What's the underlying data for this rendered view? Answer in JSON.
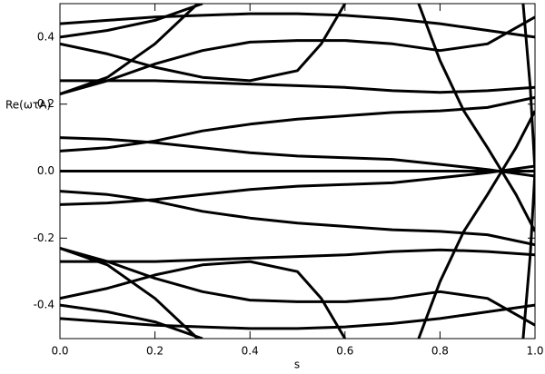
{
  "chart_data": {
    "type": "line",
    "xlabel": "s",
    "ylabel": "Re(ωτA)",
    "color": "#000000",
    "xlim": [
      0,
      1
    ],
    "ylim": [
      -0.5,
      0.5
    ],
    "xticks": [
      {
        "value": 0,
        "label": "0.0"
      },
      0.2,
      0.4,
      0.6,
      0.8,
      {
        "value": 1,
        "label": "1.0"
      }
    ],
    "yticks": [
      -0.4,
      -0.2,
      {
        "value": 0,
        "label": "0.0"
      },
      0.2,
      0.4
    ],
    "series": [
      {
        "x": [
          0,
          0.1,
          0.2,
          0.3,
          0.4,
          0.5,
          0.6,
          0.7,
          0.8,
          0.9,
          1
        ],
        "values": [
          0,
          0,
          0,
          0,
          0,
          0,
          0,
          0,
          0,
          0,
          0
        ]
      },
      {
        "x": [
          0,
          0.1,
          0.2,
          0.3,
          0.4,
          0.5,
          0.6,
          0.7,
          0.8,
          0.9,
          1
        ],
        "values": [
          0.44,
          0.45,
          0.46,
          0.465,
          0.47,
          0.47,
          0.465,
          0.455,
          0.44,
          0.42,
          0.4
        ]
      },
      {
        "x": [
          0,
          0.1,
          0.2,
          0.3
        ],
        "values": [
          0.4,
          0.42,
          0.45,
          0.5
        ]
      },
      {
        "x": [
          0,
          0.1,
          0.2,
          0.3,
          0.4,
          0.5,
          0.55,
          0.6
        ],
        "values": [
          0.38,
          0.35,
          0.31,
          0.28,
          0.27,
          0.3,
          0.38,
          0.5
        ]
      },
      {
        "x": [
          0,
          0.1,
          0.2,
          0.3,
          0.4,
          0.5,
          0.6,
          0.7,
          0.8,
          0.9,
          1
        ],
        "values": [
          0.23,
          0.27,
          0.32,
          0.36,
          0.385,
          0.39,
          0.39,
          0.38,
          0.36,
          0.38,
          0.46
        ]
      },
      {
        "x": [
          0,
          0.1,
          0.2,
          0.29
        ],
        "values": [
          0.23,
          0.28,
          0.38,
          0.5
        ]
      },
      {
        "x": [
          0,
          0.1,
          0.2,
          0.3,
          0.4,
          0.5,
          0.6,
          0.7,
          0.8,
          0.9,
          1
        ],
        "values": [
          0.27,
          0.27,
          0.27,
          0.265,
          0.26,
          0.255,
          0.25,
          0.24,
          0.235,
          0.24,
          0.25
        ]
      },
      {
        "x": [
          0,
          0.1,
          0.2,
          0.3,
          0.4,
          0.5,
          0.6,
          0.7,
          0.8,
          0.9,
          1
        ],
        "values": [
          0.1,
          0.095,
          0.085,
          0.07,
          0.055,
          0.045,
          0.04,
          0.035,
          0.02,
          0.005,
          -0.015
        ]
      },
      {
        "x": [
          0,
          0.1,
          0.2,
          0.3,
          0.4,
          0.5,
          0.6,
          0.7,
          0.8,
          0.9,
          1
        ],
        "values": [
          0.06,
          0.07,
          0.09,
          0.12,
          0.14,
          0.155,
          0.165,
          0.175,
          0.18,
          0.19,
          0.22
        ]
      },
      {
        "x": [
          0,
          0.1,
          0.2,
          0.3,
          0.4,
          0.5,
          0.6,
          0.7,
          0.8,
          0.9,
          1
        ],
        "values": [
          -0.44,
          -0.45,
          -0.46,
          -0.465,
          -0.47,
          -0.47,
          -0.465,
          -0.455,
          -0.44,
          -0.42,
          -0.4
        ]
      },
      {
        "x": [
          0,
          0.1,
          0.2,
          0.3
        ],
        "values": [
          -0.4,
          -0.42,
          -0.45,
          -0.5
        ]
      },
      {
        "x": [
          0,
          0.1,
          0.2,
          0.3,
          0.4,
          0.5,
          0.55,
          0.6
        ],
        "values": [
          -0.38,
          -0.35,
          -0.31,
          -0.28,
          -0.27,
          -0.3,
          -0.38,
          -0.5
        ]
      },
      {
        "x": [
          0,
          0.1,
          0.2,
          0.3,
          0.4,
          0.5,
          0.6,
          0.7,
          0.8,
          0.9,
          1
        ],
        "values": [
          -0.23,
          -0.27,
          -0.32,
          -0.36,
          -0.385,
          -0.39,
          -0.39,
          -0.38,
          -0.36,
          -0.38,
          -0.46
        ]
      },
      {
        "x": [
          0,
          0.1,
          0.2,
          0.29
        ],
        "values": [
          -0.23,
          -0.28,
          -0.38,
          -0.5
        ]
      },
      {
        "x": [
          0,
          0.1,
          0.2,
          0.3,
          0.4,
          0.5,
          0.6,
          0.7,
          0.8,
          0.9,
          1
        ],
        "values": [
          -0.27,
          -0.27,
          -0.27,
          -0.265,
          -0.26,
          -0.255,
          -0.25,
          -0.24,
          -0.235,
          -0.24,
          -0.25
        ]
      },
      {
        "x": [
          0,
          0.1,
          0.2,
          0.3,
          0.4,
          0.5,
          0.6,
          0.7,
          0.8,
          0.9,
          1
        ],
        "values": [
          -0.1,
          -0.095,
          -0.085,
          -0.07,
          -0.055,
          -0.045,
          -0.04,
          -0.035,
          -0.02,
          -0.005,
          0.015
        ]
      },
      {
        "x": [
          0,
          0.1,
          0.2,
          0.3,
          0.4,
          0.5,
          0.6,
          0.7,
          0.8,
          0.9,
          1
        ],
        "values": [
          -0.06,
          -0.07,
          -0.09,
          -0.12,
          -0.14,
          -0.155,
          -0.165,
          -0.175,
          -0.18,
          -0.19,
          -0.22
        ]
      },
      {
        "x": [
          0.755,
          0.8,
          0.85,
          0.9,
          0.93,
          0.96,
          1
        ],
        "values": [
          0.5,
          0.33,
          0.18,
          0.07,
          0,
          -0.07,
          -0.18
        ]
      },
      {
        "x": [
          0.755,
          0.8,
          0.85,
          0.9,
          0.93,
          0.96,
          1
        ],
        "values": [
          -0.5,
          -0.33,
          -0.18,
          -0.07,
          0,
          0.07,
          0.18
        ]
      },
      {
        "x": [
          0.975,
          0.99,
          1,
          0.99,
          0.975
        ],
        "values": [
          0.5,
          0.25,
          0,
          -0.25,
          -0.5
        ]
      }
    ]
  }
}
